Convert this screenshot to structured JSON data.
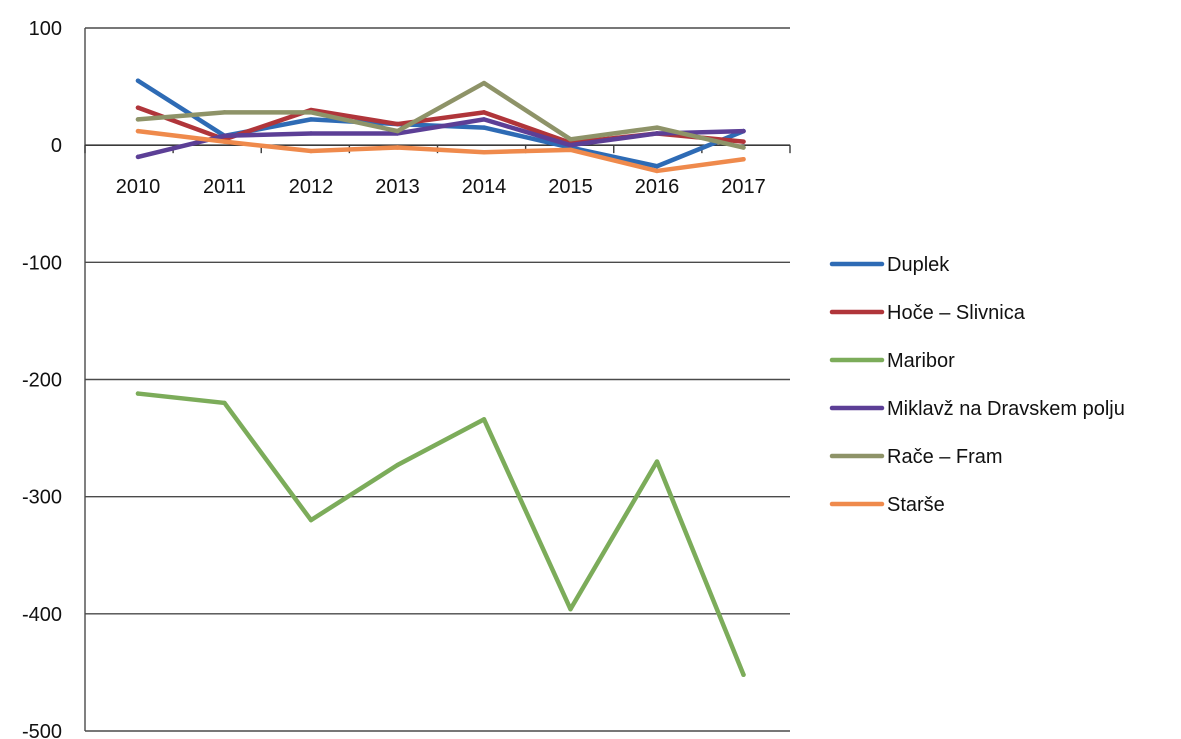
{
  "chart_data": {
    "type": "line",
    "title": "",
    "xlabel": "",
    "ylabel": "",
    "categories": [
      "2010",
      "2011",
      "2012",
      "2013",
      "2014",
      "2015",
      "2016",
      "2017"
    ],
    "ylim": [
      -500,
      100
    ],
    "yticks": [
      100,
      0,
      -100,
      -200,
      -300,
      -400,
      -500
    ],
    "grid": "horizontal",
    "legend_position": "right",
    "series": [
      {
        "name": "Duplek",
        "color": "#2e6bb5",
        "values": [
          55,
          8,
          22,
          18,
          15,
          -2,
          -18,
          12
        ]
      },
      {
        "name": "Hoče – Slivnica",
        "color": "#b0353a",
        "values": [
          32,
          5,
          30,
          18,
          28,
          2,
          10,
          3
        ]
      },
      {
        "name": "Maribor",
        "color": "#7cac5a",
        "values": [
          -212,
          -220,
          -320,
          -273,
          -234,
          -396,
          -270,
          -452
        ]
      },
      {
        "name": "Miklavž na Dravskem polju",
        "color": "#5c3f96",
        "values": [
          -10,
          8,
          10,
          10,
          22,
          0,
          10,
          12
        ]
      },
      {
        "name": "Rače – Fram",
        "color": "#8e9368",
        "values": [
          22,
          28,
          28,
          12,
          53,
          5,
          15,
          -2
        ]
      },
      {
        "name": "Starše",
        "color": "#ef8a4c",
        "values": [
          12,
          3,
          -5,
          -2,
          -6,
          -4,
          -22,
          -12
        ]
      }
    ]
  }
}
